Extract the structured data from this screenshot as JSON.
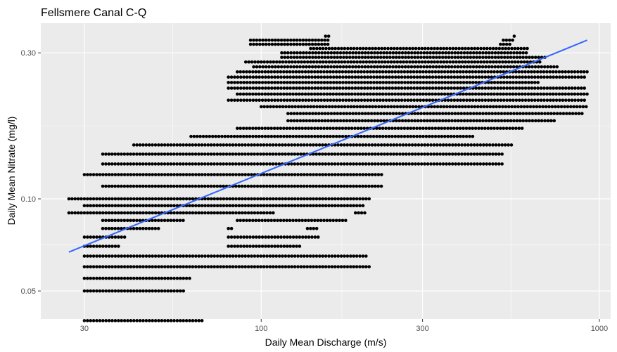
{
  "chart_data": {
    "type": "scatter",
    "title": "Fellsmere Canal C-Q",
    "xlabel": "Daily Mean Discharge (m/s)",
    "ylabel": "Daily Mean Nitrate (mg/l)",
    "x_scale": "log10",
    "y_scale": "log10",
    "xlim": [
      22.3,
      1080
    ],
    "ylim": [
      0.0405,
      0.375
    ],
    "x_ticks": [
      30,
      100,
      300,
      1000
    ],
    "x_tick_labels": [
      "30",
      "100",
      "300",
      "1000"
    ],
    "y_ticks": [
      0.05,
      0.1,
      0.3
    ],
    "y_tick_labels": [
      "0.05",
      "0.10",
      "0.30"
    ],
    "grid": true,
    "legend": "none",
    "colors": {
      "points": "#000000",
      "trend": "#3366ff",
      "panel": "#ebebeb",
      "grid": "#ffffff"
    },
    "trend_line": {
      "x": [
        27,
        920
      ],
      "y": [
        0.067,
        0.33
      ]
    },
    "point_bands": [
      {
        "y": 0.04,
        "x": [
          [
            30,
            67
          ]
        ]
      },
      {
        "y": 0.05,
        "x": [
          [
            30,
            60
          ]
        ]
      },
      {
        "y": 0.055,
        "x": [
          [
            30,
            62
          ]
        ]
      },
      {
        "y": 0.06,
        "x": [
          [
            30,
            210
          ]
        ]
      },
      {
        "y": 0.065,
        "x": [
          [
            30,
            205
          ]
        ]
      },
      {
        "y": 0.07,
        "x": [
          [
            30,
            38
          ],
          [
            80,
            130
          ]
        ]
      },
      {
        "y": 0.075,
        "x": [
          [
            30,
            40
          ],
          [
            80,
            150
          ]
        ]
      },
      {
        "y": 0.08,
        "x": [
          [
            34,
            50
          ],
          [
            80,
            82
          ],
          [
            137,
            147
          ]
        ]
      },
      {
        "y": 0.085,
        "x": [
          [
            34,
            60
          ],
          [
            85,
            180
          ]
        ]
      },
      {
        "y": 0.09,
        "x": [
          [
            27,
            110
          ],
          [
            190,
            205
          ]
        ]
      },
      {
        "y": 0.095,
        "x": [
          [
            30,
            200
          ]
        ]
      },
      {
        "y": 0.1,
        "x": [
          [
            27,
            210
          ]
        ]
      },
      {
        "y": 0.11,
        "x": [
          [
            34,
            230
          ]
        ]
      },
      {
        "y": 0.12,
        "x": [
          [
            30,
            230
          ]
        ]
      },
      {
        "y": 0.13,
        "x": [
          [
            34,
            520
          ]
        ]
      },
      {
        "y": 0.14,
        "x": [
          [
            34,
            520
          ]
        ]
      },
      {
        "y": 0.15,
        "x": [
          [
            42,
            560
          ]
        ]
      },
      {
        "y": 0.16,
        "x": [
          [
            62,
            430
          ]
        ]
      },
      {
        "y": 0.17,
        "x": [
          [
            85,
            600
          ]
        ]
      },
      {
        "y": 0.18,
        "x": [
          [
            120,
            750
          ]
        ]
      },
      {
        "y": 0.19,
        "x": [
          [
            120,
            900
          ]
        ]
      },
      {
        "y": 0.2,
        "x": [
          [
            100,
            920
          ]
        ]
      },
      {
        "y": 0.21,
        "x": [
          [
            80,
            920
          ]
        ]
      },
      {
        "y": 0.22,
        "x": [
          [
            85,
            920
          ]
        ]
      },
      {
        "y": 0.23,
        "x": [
          [
            80,
            920
          ]
        ]
      },
      {
        "y": 0.24,
        "x": [
          [
            80,
            660
          ]
        ]
      },
      {
        "y": 0.25,
        "x": [
          [
            80,
            920
          ]
        ]
      },
      {
        "y": 0.26,
        "x": [
          [
            85,
            920
          ]
        ]
      },
      {
        "y": 0.27,
        "x": [
          [
            95,
            760
          ]
        ]
      },
      {
        "y": 0.28,
        "x": [
          [
            90,
            680
          ]
        ]
      },
      {
        "y": 0.29,
        "x": [
          [
            115,
            700
          ]
        ]
      },
      {
        "y": 0.3,
        "x": [
          [
            115,
            620
          ]
        ]
      },
      {
        "y": 0.31,
        "x": [
          [
            140,
            620
          ]
        ]
      },
      {
        "y": 0.32,
        "x": [
          [
            93,
            160
          ],
          [
            510,
            550
          ]
        ]
      },
      {
        "y": 0.33,
        "x": [
          [
            93,
            160
          ],
          [
            520,
            560
          ]
        ]
      },
      {
        "y": 0.34,
        "x": [
          [
            155,
            160
          ],
          [
            560,
            565
          ]
        ]
      }
    ]
  }
}
